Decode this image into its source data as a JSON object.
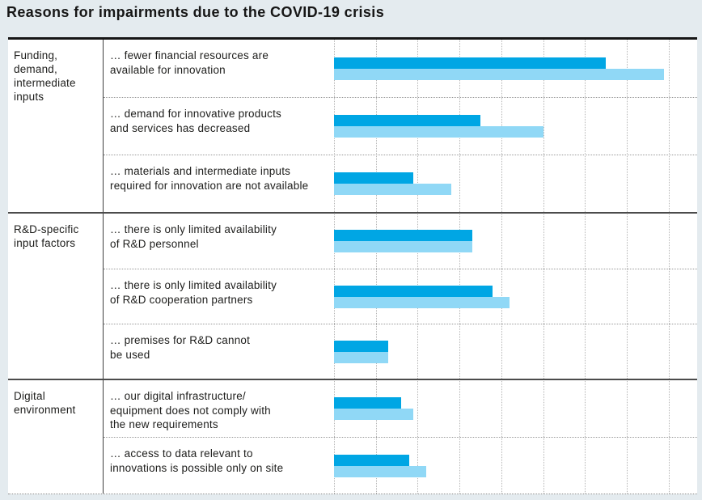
{
  "title": "Reasons for impairments due to the COVID-19 crisis",
  "chart_data": {
    "type": "bar",
    "orientation": "horizontal",
    "title": "Reasons for impairments due to the COVID-19 crisis",
    "x_axis": {
      "tick_labels_visible": false,
      "gridlines_visible": true,
      "gridline_count": 9,
      "gridline_interval_estimate": 10,
      "range_estimate": [
        0,
        87
      ]
    },
    "legend_visible": false,
    "colors": {
      "dark_series": "#00a6e4",
      "light_series": "#90d8f6",
      "background": "#e4ebef",
      "plot_background": "#ffffff"
    },
    "series_note": "two unlabeled series per reason: dark blue (top) and light blue (bottom); values estimated from gridlines at 10-unit intervals",
    "groups": [
      {
        "category": "Funding,\ndemand,\nintermediate\ninputs",
        "rows": [
          {
            "reason": "… fewer financial resources are\navailable for innovation",
            "dark": 65,
            "light": 79
          },
          {
            "reason": "… demand for innovative products\nand services has decreased",
            "dark": 35,
            "light": 50
          },
          {
            "reason": "… materials and intermediate inputs\nrequired for innovation are not available",
            "dark": 19,
            "light": 28
          }
        ]
      },
      {
        "category": "R&D-specific\ninput factors",
        "rows": [
          {
            "reason": "… there is only limited availability\nof R&D personnel",
            "dark": 33,
            "light": 33
          },
          {
            "reason": "… there is only limited availability\nof R&D cooperation partners",
            "dark": 38,
            "light": 42
          },
          {
            "reason": "… premises for R&D cannot\nbe used",
            "dark": 13,
            "light": 13
          }
        ]
      },
      {
        "category": "Digital\nenvironment",
        "rows": [
          {
            "reason": "… our digital infrastructure/\nequipment does not comply with\nthe new requirements",
            "dark": 16,
            "light": 19
          },
          {
            "reason": "… access to data relevant to\ninnovations is possible only on site",
            "dark": 18,
            "light": 22
          }
        ]
      }
    ]
  }
}
